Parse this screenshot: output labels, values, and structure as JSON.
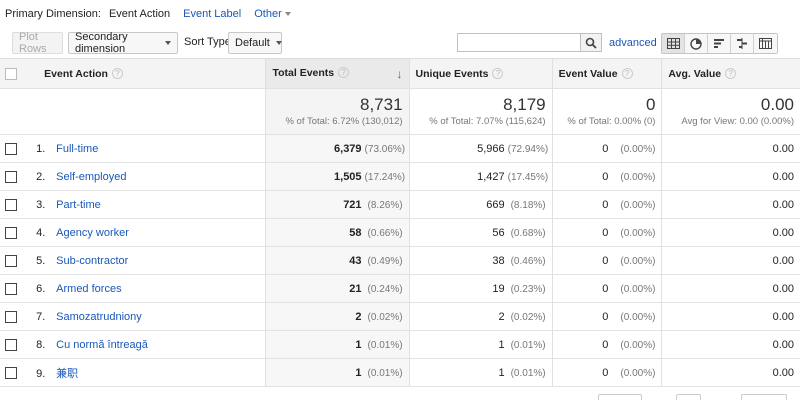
{
  "primary_dimension": {
    "label": "Primary Dimension:",
    "current": "Event Action",
    "options": [
      "Event Label"
    ],
    "other": "Other"
  },
  "toolbar": {
    "plot_rows": "Plot Rows",
    "secondary_dimension": "Secondary dimension",
    "sort_type_label": "Sort Type:",
    "sort_type_value": "Default",
    "search_placeholder": "",
    "advanced": "advanced",
    "view_icons": [
      "data-table-icon",
      "pie-chart-icon",
      "performance-bar-icon",
      "comparison-icon",
      "pivot-icon"
    ]
  },
  "table": {
    "headers": {
      "event_action": "Event Action",
      "total_events": "Total Events",
      "unique_events": "Unique Events",
      "event_value": "Event Value",
      "avg_value": "Avg. Value"
    },
    "totals": {
      "total_events": "8,731",
      "total_events_pct": "% of Total: 6.72% (130,012)",
      "unique_events": "8,179",
      "unique_events_pct": "% of Total: 7.07% (115,624)",
      "event_value": "0",
      "event_value_pct": "% of Total: 0.00% (0)",
      "avg_value": "0.00",
      "avg_value_pct": "Avg for View: 0.00 (0.00%)"
    },
    "rows": [
      {
        "index": "1.",
        "action": "Full-time",
        "total": "6,379",
        "total_pct": "(73.06%)",
        "unique": "5,966",
        "unique_pct": "(72.94%)",
        "value": "0",
        "value_pct": "(0.00%)",
        "avg": "0.00"
      },
      {
        "index": "2.",
        "action": "Self-employed",
        "total": "1,505",
        "total_pct": "(17.24%)",
        "unique": "1,427",
        "unique_pct": "(17.45%)",
        "value": "0",
        "value_pct": "(0.00%)",
        "avg": "0.00"
      },
      {
        "index": "3.",
        "action": "Part-time",
        "total": "721",
        "total_pct": "(8.26%)",
        "unique": "669",
        "unique_pct": "(8.18%)",
        "value": "0",
        "value_pct": "(0.00%)",
        "avg": "0.00"
      },
      {
        "index": "4.",
        "action": "Agency worker",
        "total": "58",
        "total_pct": "(0.66%)",
        "unique": "56",
        "unique_pct": "(0.68%)",
        "value": "0",
        "value_pct": "(0.00%)",
        "avg": "0.00"
      },
      {
        "index": "5.",
        "action": "Sub-contractor",
        "total": "43",
        "total_pct": "(0.49%)",
        "unique": "38",
        "unique_pct": "(0.46%)",
        "value": "0",
        "value_pct": "(0.00%)",
        "avg": "0.00"
      },
      {
        "index": "6.",
        "action": "Armed forces",
        "total": "21",
        "total_pct": "(0.24%)",
        "unique": "19",
        "unique_pct": "(0.23%)",
        "value": "0",
        "value_pct": "(0.00%)",
        "avg": "0.00"
      },
      {
        "index": "7.",
        "action": "Samozatrudniony",
        "total": "2",
        "total_pct": "(0.02%)",
        "unique": "2",
        "unique_pct": "(0.02%)",
        "value": "0",
        "value_pct": "(0.00%)",
        "avg": "0.00"
      },
      {
        "index": "8.",
        "action": "Cu normă întreagă",
        "total": "1",
        "total_pct": "(0.01%)",
        "unique": "1",
        "unique_pct": "(0.01%)",
        "value": "0",
        "value_pct": "(0.00%)",
        "avg": "0.00"
      },
      {
        "index": "9.",
        "action": "兼职",
        "total": "1",
        "total_pct": "(0.01%)",
        "unique": "1",
        "unique_pct": "(0.01%)",
        "value": "0",
        "value_pct": "(0.00%)",
        "avg": "0.00"
      }
    ]
  },
  "colors": {
    "link": "#1a58b8",
    "header_bg": "#f4f4f4",
    "border": "#e2e2e2"
  }
}
